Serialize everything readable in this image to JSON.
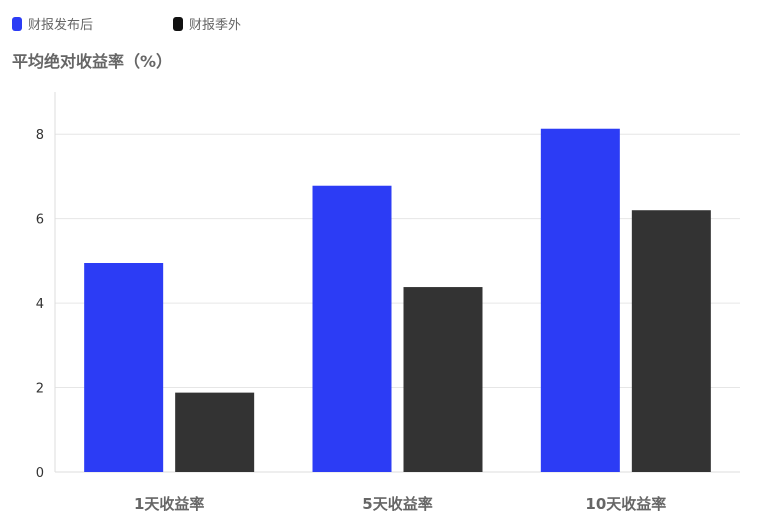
{
  "chart_data": {
    "type": "bar",
    "title": "",
    "ylabel": "平均绝对收益率（%）",
    "xlabel": "",
    "categories": [
      "1天收益率",
      "5天收益率",
      "10天收益率"
    ],
    "series": [
      {
        "name": "财报发布后",
        "color": "#2c3cf5",
        "values": [
          4.95,
          6.78,
          8.13
        ]
      },
      {
        "name": "财报季外",
        "color": "#333333",
        "values": [
          1.88,
          4.38,
          6.2
        ]
      }
    ],
    "ylim": [
      0,
      9
    ],
    "yticks": [
      0,
      2,
      4,
      6,
      8
    ],
    "grid": true,
    "legend_position": "top-left"
  }
}
